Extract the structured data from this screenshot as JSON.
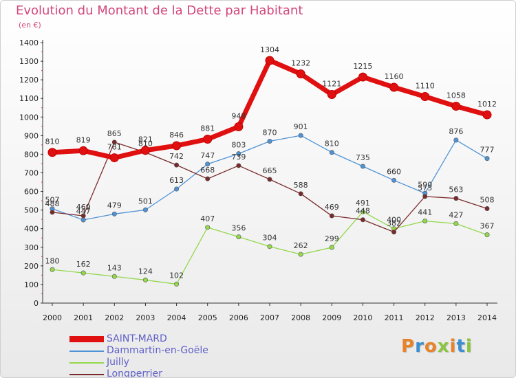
{
  "header": {
    "title": "Evolution du Montant de la Dette par Habitant",
    "unit": "(en €)"
  },
  "logo": {
    "text": "Proxiti",
    "colors": [
      "#e8832a",
      "#3b8ed0",
      "#e8832a",
      "#8bc53f",
      "#e8832a",
      "#3b8ed0",
      "#8bc53f"
    ]
  },
  "chart_data": {
    "type": "line",
    "title": "Evolution du Montant de la Dette par Habitant",
    "ylabel": "(en €)",
    "xlabel": "",
    "x": [
      "2000",
      "2001",
      "2002",
      "2003",
      "2004",
      "2005",
      "2006",
      "2007",
      "2008",
      "2009",
      "2010",
      "2011",
      "2012",
      "2013",
      "2014"
    ],
    "yticks": [
      "0",
      "100",
      "200",
      "300",
      "400",
      "500",
      "600",
      "700",
      "800",
      "900",
      "1000",
      "1100",
      "1200",
      "1300",
      "1400"
    ],
    "ylim": [
      0,
      1400
    ],
    "grid": false,
    "legend_position": "bottom-left",
    "series": [
      {
        "name": "SAINT-MARD",
        "color": "#e01010",
        "emphasis": true,
        "values": [
          810,
          819,
          781,
          821,
          846,
          881,
          948,
          1304,
          1232,
          1121,
          1215,
          1160,
          1110,
          1058,
          1012
        ]
      },
      {
        "name": "Dammartin-en-Goële",
        "color": "#4f93d6",
        "emphasis": false,
        "values": [
          507,
          447,
          479,
          501,
          613,
          747,
          803,
          870,
          901,
          810,
          735,
          660,
          590,
          876,
          777
        ]
      },
      {
        "name": "Juilly",
        "color": "#93d84d",
        "emphasis": false,
        "values": [
          180,
          162,
          143,
          124,
          102,
          407,
          356,
          304,
          262,
          299,
          491,
          400,
          441,
          427,
          367
        ]
      },
      {
        "name": "Longperrier",
        "color": "#7a2a2a",
        "emphasis": false,
        "values": [
          488,
          469,
          865,
          810,
          742,
          668,
          739,
          665,
          588,
          469,
          448,
          382,
          573,
          563,
          508
        ]
      }
    ]
  }
}
